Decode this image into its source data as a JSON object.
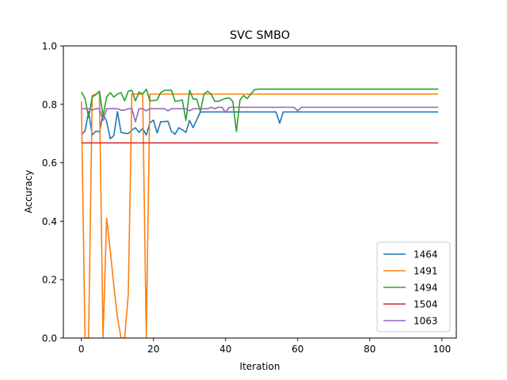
{
  "chart_data": {
    "type": "line",
    "title": "SVC SMBO",
    "xlabel": "Iteration",
    "ylabel": "Accuracy",
    "xlim": [
      -5,
      104
    ],
    "ylim": [
      0.0,
      1.0
    ],
    "xticks": [
      0,
      20,
      40,
      60,
      80,
      100
    ],
    "yticks": [
      0.0,
      0.2,
      0.4,
      0.6,
      0.8,
      1.0
    ],
    "xtick_labels": [
      "0",
      "20",
      "40",
      "60",
      "80",
      "100"
    ],
    "ytick_labels": [
      "0.0",
      "0.2",
      "0.4",
      "0.6",
      "0.8",
      "1.0"
    ],
    "grid": false,
    "legend_position": "lower-right",
    "x": [
      0,
      1,
      2,
      3,
      4,
      5,
      6,
      7,
      8,
      9,
      10,
      11,
      12,
      13,
      14,
      15,
      16,
      17,
      18,
      19,
      20,
      21,
      22,
      23,
      24,
      25,
      26,
      27,
      28,
      29,
      30,
      31,
      32,
      33,
      34,
      35,
      36,
      37,
      38,
      39,
      40,
      41,
      42,
      43,
      44,
      45,
      46,
      47,
      48,
      49,
      50,
      51,
      52,
      53,
      54,
      55,
      56,
      57,
      58,
      59,
      60,
      61,
      62,
      63,
      64,
      65,
      66,
      67,
      68,
      69,
      70,
      71,
      72,
      73,
      74,
      75,
      76,
      77,
      78,
      79,
      80,
      81,
      82,
      83,
      84,
      85,
      86,
      87,
      88,
      89,
      90,
      91,
      92,
      93,
      94,
      95,
      96,
      97,
      98,
      99
    ],
    "series": [
      {
        "name": "1464",
        "color": "#1f77b4",
        "values": [
          0.697,
          0.708,
          0.775,
          0.695,
          0.708,
          0.706,
          0.765,
          0.742,
          0.682,
          0.693,
          0.775,
          0.704,
          0.701,
          0.7,
          0.712,
          0.72,
          0.704,
          0.717,
          0.695,
          0.737,
          0.746,
          0.702,
          0.74,
          0.741,
          0.742,
          0.707,
          0.698,
          0.72,
          0.713,
          0.704,
          0.745,
          0.72,
          0.747,
          0.774,
          0.774,
          0.774,
          0.774,
          0.774,
          0.774,
          0.774,
          0.774,
          0.774,
          0.774,
          0.774,
          0.774,
          0.774,
          0.774,
          0.774,
          0.774,
          0.774,
          0.774,
          0.774,
          0.774,
          0.774,
          0.774,
          0.735,
          0.774,
          0.774,
          0.774,
          0.774,
          0.774,
          0.774,
          0.774,
          0.774,
          0.774,
          0.774,
          0.774,
          0.774,
          0.774,
          0.774,
          0.774,
          0.774,
          0.774,
          0.774,
          0.774,
          0.774,
          0.774,
          0.774,
          0.774,
          0.774,
          0.774,
          0.774,
          0.774,
          0.774,
          0.774,
          0.774,
          0.774,
          0.774,
          0.774,
          0.774,
          0.774,
          0.774,
          0.774,
          0.774,
          0.774,
          0.774,
          0.774,
          0.774,
          0.774,
          0.774
        ]
      },
      {
        "name": "1491",
        "color": "#ff7f0e",
        "values": [
          0.81,
          0.0,
          0.0,
          0.83,
          0.835,
          0.84,
          0.0,
          0.41,
          0.3,
          0.18,
          0.07,
          0.0,
          0.0,
          0.15,
          0.835,
          0.835,
          0.835,
          0.835,
          0.0,
          0.835,
          0.835,
          0.835,
          0.835,
          0.835,
          0.835,
          0.835,
          0.835,
          0.835,
          0.835,
          0.835,
          0.835,
          0.835,
          0.835,
          0.835,
          0.835,
          0.835,
          0.835,
          0.835,
          0.835,
          0.835,
          0.835,
          0.835,
          0.835,
          0.835,
          0.835,
          0.835,
          0.835,
          0.835,
          0.835,
          0.835,
          0.835,
          0.835,
          0.835,
          0.835,
          0.835,
          0.835,
          0.835,
          0.835,
          0.835,
          0.835,
          0.835,
          0.835,
          0.835,
          0.835,
          0.835,
          0.835,
          0.835,
          0.835,
          0.835,
          0.835,
          0.835,
          0.835,
          0.835,
          0.835,
          0.835,
          0.835,
          0.835,
          0.835,
          0.835,
          0.835,
          0.835,
          0.835,
          0.835,
          0.835,
          0.835,
          0.835,
          0.835,
          0.835,
          0.835,
          0.835,
          0.835,
          0.835,
          0.835,
          0.835,
          0.835,
          0.835,
          0.835,
          0.835,
          0.835,
          0.835
        ]
      },
      {
        "name": "1494",
        "color": "#2ca02c",
        "values": [
          0.842,
          0.82,
          0.755,
          0.825,
          0.833,
          0.845,
          0.76,
          0.825,
          0.84,
          0.825,
          0.835,
          0.84,
          0.812,
          0.845,
          0.848,
          0.812,
          0.842,
          0.835,
          0.852,
          0.812,
          0.813,
          0.815,
          0.84,
          0.848,
          0.848,
          0.848,
          0.81,
          0.812,
          0.815,
          0.745,
          0.848,
          0.818,
          0.818,
          0.775,
          0.835,
          0.845,
          0.835,
          0.81,
          0.81,
          0.816,
          0.82,
          0.822,
          0.81,
          0.707,
          0.815,
          0.83,
          0.82,
          0.835,
          0.85,
          0.852,
          0.852,
          0.852,
          0.852,
          0.852,
          0.852,
          0.852,
          0.852,
          0.852,
          0.852,
          0.852,
          0.852,
          0.852,
          0.852,
          0.852,
          0.852,
          0.852,
          0.852,
          0.852,
          0.852,
          0.852,
          0.852,
          0.852,
          0.852,
          0.852,
          0.852,
          0.852,
          0.852,
          0.852,
          0.852,
          0.852,
          0.852,
          0.852,
          0.852,
          0.852,
          0.852,
          0.852,
          0.852,
          0.852,
          0.852,
          0.852,
          0.852,
          0.852,
          0.852,
          0.852,
          0.852,
          0.852,
          0.852,
          0.852,
          0.852,
          0.852
        ]
      },
      {
        "name": "1504",
        "color": "#d62728",
        "values": [
          0.668,
          0.668,
          0.668,
          0.668,
          0.668,
          0.668,
          0.668,
          0.668,
          0.668,
          0.668,
          0.668,
          0.668,
          0.668,
          0.668,
          0.668,
          0.668,
          0.668,
          0.668,
          0.668,
          0.668,
          0.668,
          0.668,
          0.668,
          0.668,
          0.668,
          0.668,
          0.668,
          0.668,
          0.668,
          0.668,
          0.668,
          0.668,
          0.668,
          0.668,
          0.668,
          0.668,
          0.668,
          0.668,
          0.668,
          0.668,
          0.668,
          0.668,
          0.668,
          0.668,
          0.668,
          0.668,
          0.668,
          0.668,
          0.668,
          0.668,
          0.668,
          0.668,
          0.668,
          0.668,
          0.668,
          0.668,
          0.668,
          0.668,
          0.668,
          0.668,
          0.668,
          0.668,
          0.668,
          0.668,
          0.668,
          0.668,
          0.668,
          0.668,
          0.668,
          0.668,
          0.668,
          0.668,
          0.668,
          0.668,
          0.668,
          0.668,
          0.668,
          0.668,
          0.668,
          0.668,
          0.668,
          0.668,
          0.668,
          0.668,
          0.668,
          0.668,
          0.668,
          0.668,
          0.668,
          0.668,
          0.668,
          0.668,
          0.668,
          0.668,
          0.668,
          0.668,
          0.668,
          0.668,
          0.668,
          0.668
        ]
      },
      {
        "name": "1063",
        "color": "#9467bd",
        "values": [
          0.785,
          0.785,
          0.785,
          0.78,
          0.785,
          0.785,
          0.745,
          0.785,
          0.785,
          0.785,
          0.785,
          0.78,
          0.78,
          0.785,
          0.785,
          0.74,
          0.785,
          0.785,
          0.778,
          0.785,
          0.785,
          0.785,
          0.785,
          0.785,
          0.778,
          0.785,
          0.785,
          0.785,
          0.785,
          0.785,
          0.778,
          0.785,
          0.785,
          0.785,
          0.785,
          0.785,
          0.79,
          0.785,
          0.79,
          0.79,
          0.772,
          0.79,
          0.79,
          0.79,
          0.79,
          0.79,
          0.79,
          0.79,
          0.79,
          0.79,
          0.79,
          0.79,
          0.79,
          0.79,
          0.79,
          0.79,
          0.79,
          0.79,
          0.79,
          0.79,
          0.778,
          0.79,
          0.79,
          0.79,
          0.79,
          0.79,
          0.79,
          0.79,
          0.79,
          0.79,
          0.79,
          0.79,
          0.79,
          0.79,
          0.79,
          0.79,
          0.79,
          0.79,
          0.79,
          0.79,
          0.79,
          0.79,
          0.79,
          0.79,
          0.79,
          0.79,
          0.79,
          0.79,
          0.79,
          0.79,
          0.79,
          0.79,
          0.79,
          0.79,
          0.79,
          0.79,
          0.79,
          0.79,
          0.79,
          0.79
        ]
      }
    ]
  }
}
